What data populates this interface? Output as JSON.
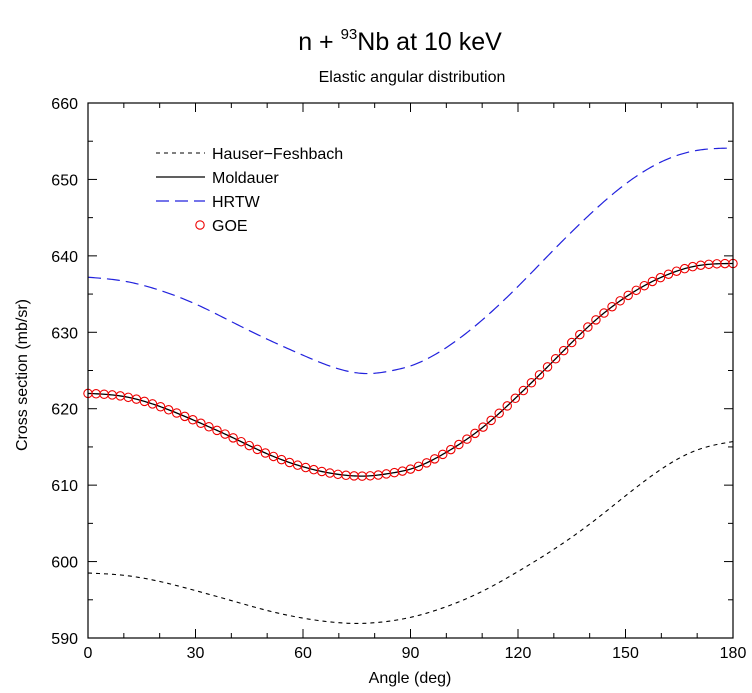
{
  "chart_data": {
    "type": "line",
    "title_parts": {
      "pre": "n + ",
      "sup": "93",
      "post": "Nb at 10 keV"
    },
    "subtitle": "Elastic angular distribution",
    "xlabel": "Angle (deg)",
    "ylabel": "Cross section (mb/sr)",
    "xlim": [
      0,
      180
    ],
    "ylim": [
      590,
      660
    ],
    "xticks": [
      0,
      30,
      60,
      90,
      120,
      150,
      180
    ],
    "yticks": [
      590,
      600,
      610,
      620,
      630,
      640,
      650,
      660
    ],
    "grid": false,
    "legend_position": "top-left",
    "series": [
      {
        "name": "Hauser−Feshbach",
        "style": "short-dash",
        "color": "#000000",
        "x": [
          0,
          10,
          20,
          30,
          40,
          50,
          60,
          70,
          75,
          80,
          90,
          100,
          110,
          120,
          130,
          140,
          150,
          160,
          170,
          180
        ],
        "y": [
          598.5,
          598.2,
          597.4,
          596.2,
          594.9,
          593.6,
          592.6,
          592.0,
          591.9,
          592.0,
          592.7,
          594.1,
          596.1,
          598.7,
          601.6,
          604.9,
          608.6,
          612.1,
          614.6,
          615.7
        ]
      },
      {
        "name": "Moldauer",
        "style": "solid",
        "color": "#000000",
        "x": [
          0,
          10,
          20,
          30,
          40,
          50,
          60,
          70,
          78,
          85,
          90,
          100,
          110,
          120,
          130,
          140,
          150,
          160,
          170,
          180
        ],
        "y": [
          622.0,
          621.6,
          620.3,
          618.4,
          616.3,
          614.1,
          612.4,
          611.4,
          611.2,
          611.6,
          612.1,
          614.3,
          617.5,
          621.7,
          626.3,
          630.9,
          634.6,
          637.2,
          638.7,
          639.0
        ]
      },
      {
        "name": "HRTW",
        "style": "long-dash",
        "color": "#2222dd",
        "x": [
          0,
          10,
          20,
          30,
          40,
          50,
          60,
          70,
          78,
          85,
          90,
          100,
          110,
          120,
          130,
          140,
          150,
          160,
          170,
          180
        ],
        "y": [
          637.2,
          636.7,
          635.5,
          633.7,
          631.4,
          629.1,
          627.0,
          625.2,
          624.6,
          625.0,
          625.6,
          628.0,
          631.6,
          636.0,
          640.8,
          645.4,
          649.4,
          652.3,
          653.8,
          654.1
        ]
      },
      {
        "name": "GOE",
        "style": "circles",
        "color": "#ee0000",
        "x": [
          0,
          10,
          20,
          30,
          40,
          50,
          60,
          70,
          78,
          85,
          90,
          100,
          110,
          120,
          130,
          140,
          150,
          160,
          170,
          180
        ],
        "y": [
          622.0,
          621.6,
          620.3,
          618.4,
          616.3,
          614.1,
          612.4,
          611.4,
          611.2,
          611.6,
          612.1,
          614.3,
          617.5,
          621.7,
          626.3,
          630.9,
          634.6,
          637.2,
          638.7,
          639.0
        ]
      }
    ]
  }
}
